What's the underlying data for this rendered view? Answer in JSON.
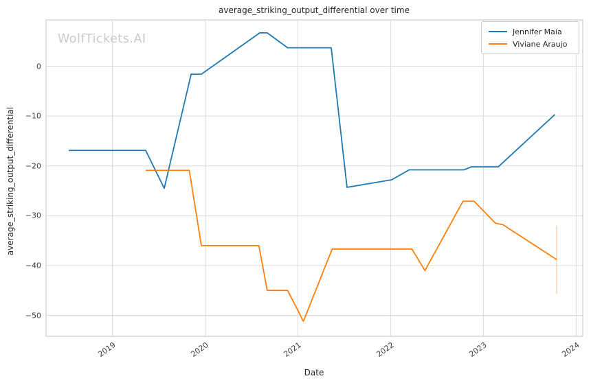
{
  "watermark": "WolfTickets.AI",
  "chart_data": {
    "type": "line",
    "title": "average_striking_output_differential over time",
    "xlabel": "Date",
    "ylabel": "average_striking_output_differential",
    "grid": true,
    "legend_position": "upper right",
    "x_range": [
      2018.286,
      2024.071
    ],
    "y_range": [
      -54.2,
      9.3
    ],
    "x_ticks": [
      {
        "v": 2019,
        "label": "2019"
      },
      {
        "v": 2020,
        "label": "2020"
      },
      {
        "v": 2021,
        "label": "2021"
      },
      {
        "v": 2022,
        "label": "2022"
      },
      {
        "v": 2023,
        "label": "2023"
      },
      {
        "v": 2024,
        "label": "2024"
      }
    ],
    "y_ticks": [
      {
        "v": 0,
        "label": "0"
      },
      {
        "v": -10,
        "label": "−10"
      },
      {
        "v": -20,
        "label": "−20"
      },
      {
        "v": -30,
        "label": "−30"
      },
      {
        "v": -40,
        "label": "−40"
      },
      {
        "v": -50,
        "label": "−50"
      }
    ],
    "series": [
      {
        "name": "Jennifer Maia",
        "color": "#1f77b4",
        "points": [
          [
            2018.53,
            -16.9
          ],
          [
            2019.36,
            -16.9
          ],
          [
            2019.56,
            -24.5
          ],
          [
            2019.85,
            -1.6
          ],
          [
            2019.96,
            -1.6
          ],
          [
            2020.59,
            6.7
          ],
          [
            2020.67,
            6.7
          ],
          [
            2020.89,
            3.7
          ],
          [
            2021.36,
            3.7
          ],
          [
            2021.53,
            -24.3
          ],
          [
            2022.01,
            -22.8
          ],
          [
            2022.2,
            -20.8
          ],
          [
            2022.79,
            -20.8
          ],
          [
            2022.87,
            -20.2
          ],
          [
            2023.16,
            -20.2
          ],
          [
            2023.77,
            -9.7
          ]
        ]
      },
      {
        "name": "Viviane Araujo",
        "color": "#ff7f0e",
        "points": [
          [
            2019.36,
            -20.9
          ],
          [
            2019.83,
            -20.9
          ],
          [
            2019.96,
            -36.0
          ],
          [
            2020.58,
            -36.0
          ],
          [
            2020.67,
            -45.0
          ],
          [
            2020.89,
            -45.0
          ],
          [
            2021.06,
            -51.2
          ],
          [
            2021.37,
            -36.7
          ],
          [
            2022.23,
            -36.7
          ],
          [
            2022.37,
            -41.0
          ],
          [
            2022.78,
            -27.1
          ],
          [
            2022.9,
            -27.1
          ],
          [
            2023.13,
            -31.5
          ],
          [
            2023.21,
            -31.8
          ],
          [
            2023.79,
            -38.8
          ]
        ],
        "error_bar": {
          "x": 2023.79,
          "y_from": -32.0,
          "y_to": -45.7,
          "color": "#ffd8b8"
        }
      }
    ]
  },
  "colors": {
    "grid": "#dcdcdc",
    "spine": "#cccccc",
    "title_text": "#262626",
    "tick_text": "#3d3d3d",
    "watermark_text": "#c9c9c9",
    "background": "#ffffff"
  }
}
